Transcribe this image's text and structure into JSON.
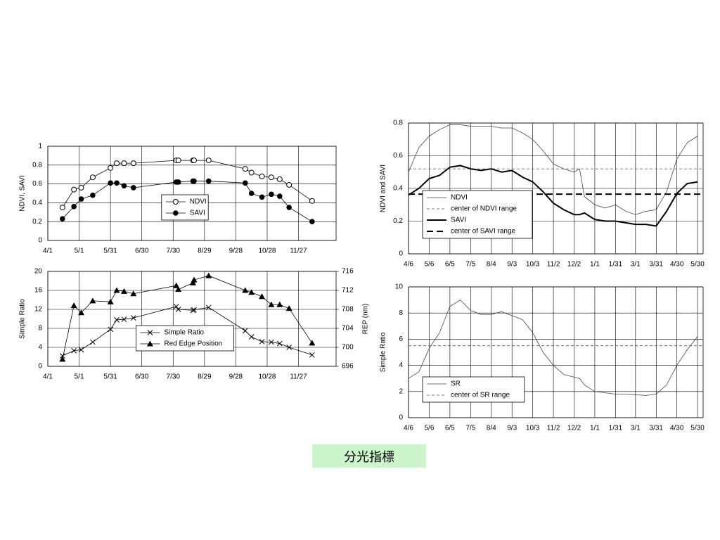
{
  "caption": "分光指標",
  "chart_data": [
    {
      "type": "line",
      "ylabel": "NDVI, SAVI",
      "legend": "center",
      "x": [
        "4/15",
        "4/26",
        "5/3",
        "5/14",
        "5/31",
        "6/6",
        "6/13",
        "6/22",
        "8/2",
        "8/4",
        "8/18",
        "8/19",
        "9/2",
        "10/7",
        "10/13",
        "10/23",
        "11/1",
        "11/9",
        "11/18",
        "12/10"
      ],
      "xlim": [
        "4/1",
        "1/2"
      ],
      "xticks": [
        "4/1",
        "5/1",
        "5/31",
        "6/30",
        "7/30",
        "8/29",
        "9/28",
        "10/28",
        "11/27"
      ],
      "ylim": [
        0,
        1
      ],
      "yticks": [
        0,
        0.2,
        0.4,
        0.6,
        0.8,
        1
      ],
      "grid": true,
      "series": [
        {
          "name": "NDVI",
          "color": "#000000",
          "marker": "open-circle",
          "values": [
            0.35,
            0.54,
            0.56,
            0.67,
            0.77,
            0.82,
            0.82,
            0.82,
            0.85,
            0.85,
            0.85,
            0.85,
            0.85,
            0.76,
            0.72,
            0.68,
            0.67,
            0.65,
            0.59,
            0.42
          ]
        },
        {
          "name": "SAVI",
          "color": "#000000",
          "marker": "filled-circle",
          "values": [
            0.23,
            0.36,
            0.44,
            0.48,
            0.61,
            0.61,
            0.58,
            0.56,
            0.62,
            0.62,
            0.63,
            0.63,
            0.63,
            0.61,
            0.5,
            0.46,
            0.49,
            0.47,
            0.35,
            0.2
          ]
        }
      ]
    },
    {
      "type": "line",
      "ylabel": "NDVI and SAVI",
      "legend": "lower left",
      "x": [
        "4/6",
        "4/21",
        "5/6",
        "5/21",
        "6/5",
        "6/20",
        "7/5",
        "7/20",
        "8/4",
        "8/19",
        "9/3",
        "9/18",
        "10/3",
        "10/18",
        "11/2",
        "11/17",
        "12/2",
        "12/10",
        "12/17",
        "1/1",
        "1/16",
        "1/31",
        "2/15",
        "3/1",
        "3/16",
        "3/31",
        "4/15",
        "4/30",
        "5/15",
        "5/30"
      ],
      "xlim": [
        "4/6",
        "6/7"
      ],
      "xticks": [
        "4/6",
        "5/6",
        "6/5",
        "7/5",
        "8/4",
        "9/3",
        "10/3",
        "11/2",
        "12/2",
        "1/1",
        "1/31",
        "3/1",
        "3/31",
        "4/30",
        "5/30"
      ],
      "ylim": [
        0,
        0.8
      ],
      "yticks": [
        0,
        0.2,
        0.4,
        0.6,
        0.8
      ],
      "grid": true,
      "series": [
        {
          "name": "NDVI",
          "color": "#444444",
          "linewidth": 0.8,
          "values": [
            0.5,
            0.65,
            0.72,
            0.76,
            0.79,
            0.79,
            0.78,
            0.78,
            0.78,
            0.77,
            0.77,
            0.74,
            0.7,
            0.63,
            0.55,
            0.52,
            0.5,
            0.52,
            0.35,
            0.3,
            0.28,
            0.3,
            0.26,
            0.24,
            0.26,
            0.27,
            0.38,
            0.58,
            0.68,
            0.72
          ]
        },
        {
          "name": "center of NDVI range",
          "color": "#555555",
          "linewidth": 0.8,
          "dash": true,
          "value": 0.52
        },
        {
          "name": "SAVI",
          "color": "#000000",
          "linewidth": 2,
          "values": [
            0.36,
            0.4,
            0.46,
            0.48,
            0.53,
            0.54,
            0.52,
            0.51,
            0.52,
            0.5,
            0.51,
            0.47,
            0.44,
            0.38,
            0.31,
            0.27,
            0.24,
            0.24,
            0.25,
            0.21,
            0.2,
            0.2,
            0.19,
            0.18,
            0.18,
            0.17,
            0.26,
            0.37,
            0.43,
            0.44
          ]
        },
        {
          "name": "center of SAVI range",
          "color": "#000000",
          "linewidth": 2,
          "dash": true,
          "value": 0.365
        }
      ]
    },
    {
      "type": "line",
      "ylabel": "Simple Ratio",
      "y2label": "REP (nm)",
      "legend": "lower center",
      "x": [
        "4/15",
        "4/26",
        "5/3",
        "5/14",
        "5/31",
        "6/6",
        "6/13",
        "6/22",
        "8/2",
        "8/4",
        "8/18",
        "8/19",
        "9/2",
        "10/7",
        "10/13",
        "10/23",
        "11/1",
        "11/9",
        "11/18",
        "12/10"
      ],
      "xlim": [
        "4/1",
        "1/2"
      ],
      "xticks": [
        "4/1",
        "5/1",
        "5/31",
        "6/30",
        "7/30",
        "8/29",
        "9/28",
        "10/28",
        "11/27"
      ],
      "ylim": [
        0,
        20
      ],
      "yticks": [
        0,
        4,
        8,
        12,
        16,
        20
      ],
      "y2lim": [
        696,
        716
      ],
      "y2ticks": [
        696,
        700,
        704,
        708,
        712,
        716
      ],
      "grid": true,
      "series": [
        {
          "name": "Simple Ratio",
          "color": "#000000",
          "marker": "x",
          "values": [
            2.2,
            3.3,
            3.5,
            5.1,
            7.8,
            9.8,
            9.9,
            10.2,
            12.6,
            12.0,
            11.8,
            11.9,
            12.4,
            7.5,
            6.2,
            5.2,
            5.1,
            4.8,
            4.0,
            2.4
          ]
        },
        {
          "name": "Red Edge Position",
          "color": "#000000",
          "marker": "triangle",
          "axis": "y2",
          "values": [
            697.5,
            708.8,
            707.3,
            709.8,
            709.6,
            712.0,
            711.8,
            711.3,
            713.0,
            712.2,
            713.6,
            714.2,
            715.1,
            712.0,
            711.6,
            710.7,
            709.0,
            709.0,
            708.2,
            700.9
          ]
        }
      ]
    },
    {
      "type": "line",
      "ylabel": "Simple Ratio",
      "legend": "lower left",
      "x": [
        "4/6",
        "4/21",
        "5/6",
        "5/21",
        "6/5",
        "6/20",
        "7/5",
        "7/20",
        "8/4",
        "8/19",
        "9/3",
        "9/18",
        "10/3",
        "10/18",
        "11/2",
        "11/17",
        "12/2",
        "12/10",
        "12/17",
        "1/1",
        "1/16",
        "1/31",
        "2/15",
        "3/1",
        "3/16",
        "3/31",
        "4/15",
        "4/30",
        "5/15",
        "5/30"
      ],
      "xlim": [
        "4/6",
        "6/7"
      ],
      "xticks": [
        "4/6",
        "5/6",
        "6/5",
        "7/5",
        "8/4",
        "9/3",
        "10/3",
        "11/2",
        "12/2",
        "1/1",
        "1/31",
        "3/1",
        "3/31",
        "4/30",
        "5/30"
      ],
      "ylim": [
        0,
        10
      ],
      "yticks": [
        0,
        2,
        4,
        6,
        8,
        10
      ],
      "grid": true,
      "series": [
        {
          "name": "SR",
          "color": "#444444",
          "linewidth": 0.8,
          "values": [
            3.0,
            3.5,
            5.3,
            6.5,
            8.5,
            9.0,
            8.2,
            7.9,
            7.9,
            8.1,
            7.8,
            7.5,
            6.5,
            5.0,
            4.0,
            3.3,
            3.1,
            3.0,
            2.5,
            2.0,
            1.9,
            1.8,
            1.8,
            1.75,
            1.7,
            1.8,
            2.5,
            4.0,
            5.2,
            6.2
          ]
        },
        {
          "name": "center of SR range",
          "color": "#555555",
          "linewidth": 0.8,
          "dash": true,
          "value": 5.5
        }
      ]
    }
  ]
}
